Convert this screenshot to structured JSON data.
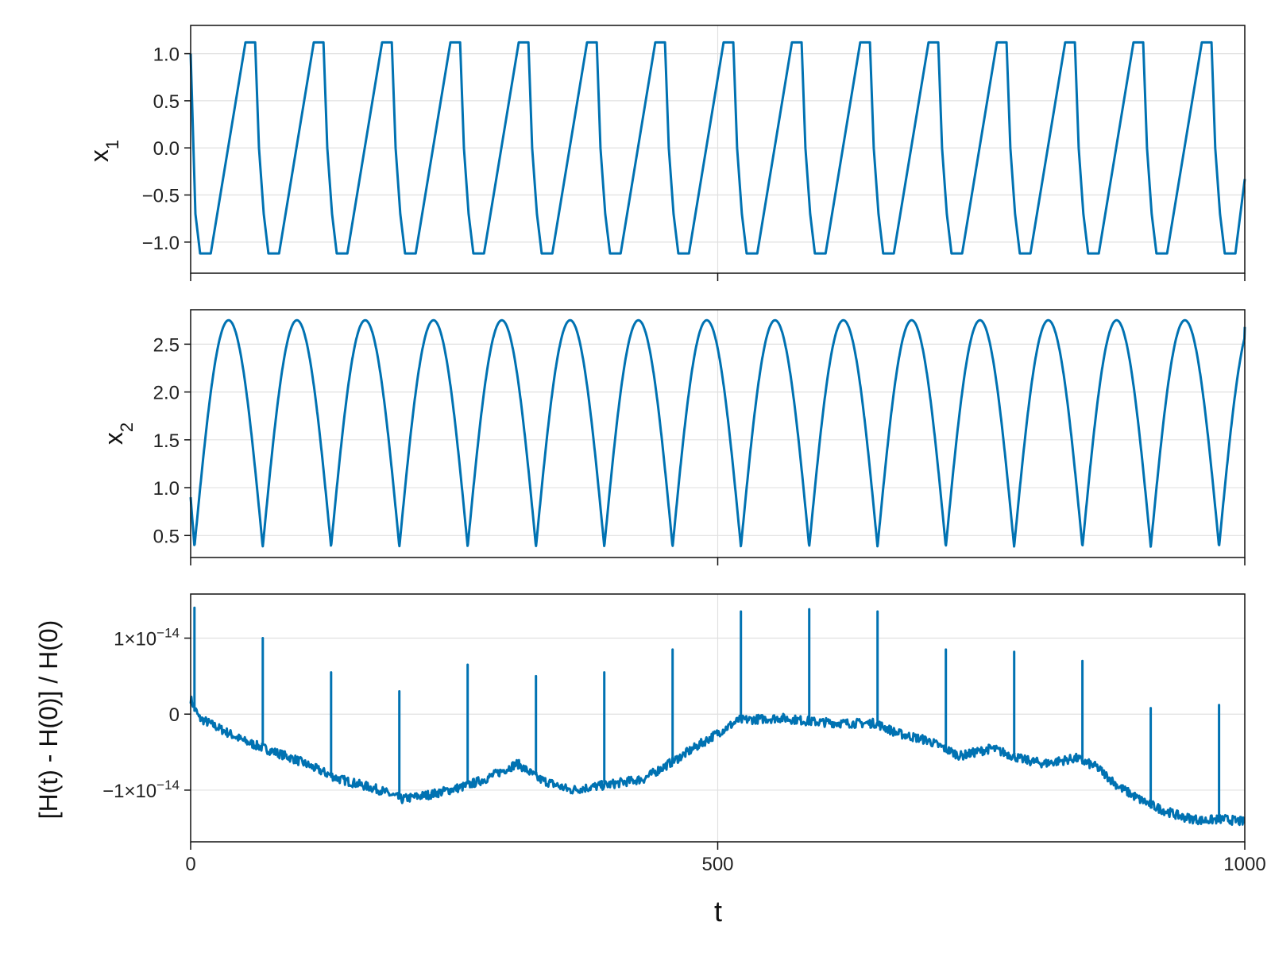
{
  "colors": {
    "series": "#0072B2",
    "grid": "#e0e0e0",
    "frame": "#111111"
  },
  "x_axis": {
    "label": "t",
    "ticks": [
      "0",
      "500",
      "1000"
    ]
  },
  "chart_data": [
    {
      "type": "line",
      "ylabel_main": "x",
      "ylabel_sub": "1",
      "xlim": [
        0,
        1000
      ],
      "ylim": [
        -1.33,
        1.3
      ],
      "y_ticks": [
        1.0,
        0.5,
        0.0,
        -0.5,
        -1.0
      ],
      "y_tick_labels": [
        "1.0",
        "0.5",
        "0.0",
        "−0.5",
        "−1.0"
      ],
      "grid": true,
      "period": 64.8,
      "amplitude": 1.18,
      "x_start": 1.0,
      "x_end": -0.33,
      "series": [
        {
          "x": [
            0,
            4.5,
            9,
            19.1,
            52,
            61.2,
            64.8,
            69.3,
            73.8,
            83.9,
            116.8,
            126,
            129.6,
            134.1,
            138.6,
            148.7,
            181.6,
            190.8,
            194.4,
            198.9,
            203.4,
            213.5,
            246.4,
            255.6,
            259.2,
            263.7,
            268.2,
            278.3,
            311.2,
            320.4,
            324,
            328.5,
            333,
            343.1,
            376,
            385.2,
            388.8,
            393.3,
            397.8,
            407.9,
            440.8,
            450,
            453.6,
            458.1,
            462.6,
            472.7,
            505.6,
            514.8,
            518.4,
            522.9,
            527.4,
            537.5,
            570.4,
            579.6,
            583.2,
            587.7,
            592.2,
            602.3,
            635.2,
            644.4,
            648,
            652.5,
            657,
            667.1,
            700,
            709.2,
            712.8,
            717.3,
            721.8,
            731.9,
            764.8,
            774,
            777.6,
            782.1,
            786.6,
            796.7,
            829.6,
            838.8,
            842.4,
            846.9,
            851.4,
            861.5,
            894.4,
            903.6,
            907.2,
            911.7,
            916.2,
            926.3,
            959.2,
            968.4,
            972,
            976.5,
            981,
            991.1,
            1000
          ],
          "y": [
            1.0,
            -0.7,
            -1.12,
            -1.12,
            1.12,
            1.12,
            0.0,
            -0.7,
            -1.12,
            -1.12,
            1.12,
            1.12,
            0.0,
            -0.7,
            -1.12,
            -1.12,
            1.12,
            1.12,
            0.0,
            -0.7,
            -1.12,
            -1.12,
            1.12,
            1.12,
            0.0,
            -0.7,
            -1.12,
            -1.12,
            1.12,
            1.12,
            0.0,
            -0.7,
            -1.12,
            -1.12,
            1.12,
            1.12,
            0.0,
            -0.7,
            -1.12,
            -1.12,
            1.12,
            1.12,
            0.0,
            -0.7,
            -1.12,
            -1.12,
            1.12,
            1.12,
            0.0,
            -0.7,
            -1.12,
            -1.12,
            1.12,
            1.12,
            0.0,
            -0.7,
            -1.12,
            -1.12,
            1.12,
            1.12,
            0.0,
            -0.7,
            -1.12,
            -1.12,
            1.12,
            1.12,
            0.0,
            -0.7,
            -1.12,
            -1.12,
            1.12,
            1.12,
            0.0,
            -0.7,
            -1.12,
            -1.12,
            1.12,
            1.12,
            0.0,
            -0.7,
            -1.12,
            -1.12,
            1.12,
            1.12,
            0.0,
            -0.7,
            -1.12,
            -1.12,
            1.12,
            1.12,
            0.0,
            -0.7,
            -1.12,
            -1.12,
            -0.33
          ]
        }
      ]
    },
    {
      "type": "line",
      "ylabel_main": "x",
      "ylabel_sub": "2",
      "xlim": [
        0,
        1000
      ],
      "ylim": [
        0.27,
        2.86
      ],
      "y_ticks": [
        2.5,
        2.0,
        1.5,
        1.0,
        0.5
      ],
      "y_tick_labels": [
        "2.5",
        "2.0",
        "1.5",
        "1.0",
        "0.5"
      ],
      "grid": true,
      "period": 64.8,
      "min": 0.38,
      "max": 2.75,
      "first_min_t": 3.6,
      "x_start": 0.9,
      "x_end": 2.68
    },
    {
      "type": "line",
      "ylabel": "[H(t) - H(0)] / H(0)",
      "xlim": [
        0,
        1000
      ],
      "ylim": [
        -1.68e-14,
        1.58e-14
      ],
      "y_ticks": [
        1e-14,
        0,
        -1e-14
      ],
      "y_tick_labels": [
        {
          "mant": "1×10",
          "exp": "−14"
        },
        {
          "mant": "0",
          "exp": ""
        },
        {
          "mant": "−1×10",
          "exp": "−14"
        }
      ],
      "grid": true,
      "baseline": {
        "t": [
          0,
          8,
          50,
          100,
          140,
          180,
          200,
          230,
          260,
          280,
          310,
          330,
          360,
          400,
          430,
          460,
          500,
          520,
          560,
          590,
          620,
          650,
          670,
          700,
          730,
          760,
          790,
          810,
          840,
          860,
          880,
          900,
          920,
          940,
          960,
          980,
          1000
        ],
        "v": [
          2e-15,
          -5e-16,
          -3.5e-15,
          -6e-15,
          -8.5e-15,
          -1e-14,
          -1.12e-14,
          -1.05e-14,
          -9.5e-15,
          -8.5e-15,
          -6.5e-15,
          -8.5e-15,
          -1e-14,
          -9.2e-15,
          -8.5e-15,
          -6e-15,
          -2.5e-15,
          -8e-16,
          -5e-16,
          -1e-15,
          -1.2e-15,
          -1.2e-15,
          -2.5e-15,
          -3.5e-15,
          -5.5e-15,
          -4.5e-15,
          -6e-15,
          -6.5e-15,
          -5.8e-15,
          -7e-15,
          -9.5e-15,
          -1.12e-14,
          -1.25e-14,
          -1.35e-14,
          -1.4e-14,
          -1.38e-14,
          -1.42e-14
        ]
      },
      "spikes": {
        "t": [
          3.6,
          68.4,
          133.2,
          198,
          262.8,
          327.6,
          392.4,
          457.2,
          522,
          586.8,
          651.6,
          716.4,
          781.2,
          846,
          910.8,
          975.6
        ],
        "v": [
          1.4e-14,
          1e-14,
          5.5e-15,
          3e-15,
          6.5e-15,
          5e-15,
          5.5e-15,
          8.5e-15,
          1.35e-14,
          1.38e-14,
          1.35e-14,
          8.5e-15,
          8.2e-15,
          7e-15,
          8e-16,
          1.2e-15
        ]
      }
    }
  ]
}
